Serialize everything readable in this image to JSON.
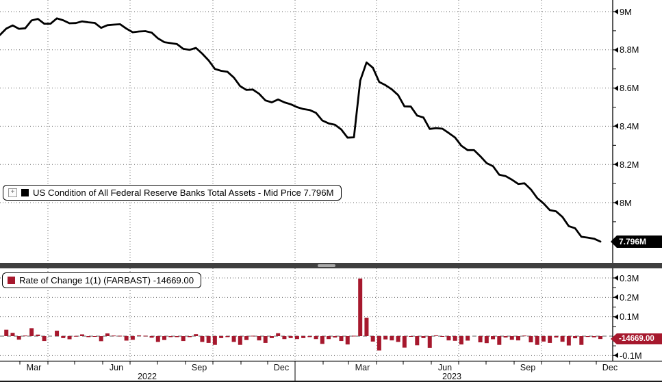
{
  "top_panel": {
    "legend": {
      "expand_icon": "plus-box-icon",
      "series_swatch_color": "#000000",
      "label": "US Condition of All Federal Reserve Banks Total Assets - Mid Price 7.796M"
    },
    "last_price_badge": "7.796M",
    "badge_bg": "#000000",
    "y_tick_labels": [
      "9M",
      "8.8M",
      "8.6M",
      "8.4M",
      "8.2M",
      "8M"
    ],
    "y_tick_values": [
      9.0,
      8.8,
      8.6,
      8.4,
      8.2,
      8.0
    ],
    "y_minor_tick_values": [
      8.9,
      8.7,
      8.5,
      8.3,
      8.1,
      7.9
    ]
  },
  "bottom_panel": {
    "legend": {
      "series_swatch_color": "#a6182d",
      "label": "Rate of Change 1(1) (FARBAST) -14669.00"
    },
    "last_value_badge": "-14669.00",
    "badge_bg": "#a6182d",
    "y_tick_labels": [
      "0.3M",
      "0.2M",
      "0.1M",
      "-0.1M"
    ],
    "y_tick_values": [
      300000,
      200000,
      100000,
      -100000
    ],
    "y_minor_tick_values": [
      250000,
      150000,
      50000,
      -50000
    ]
  },
  "x_axis": {
    "month_labels": [
      "Mar",
      "Jun",
      "Sep",
      "Dec",
      "Mar",
      "Jun",
      "Sep",
      "Dec"
    ],
    "year_labels": [
      "2022",
      "2023"
    ]
  },
  "colors": {
    "line": "#000000",
    "bar": "#a6182d",
    "grid": "#666666",
    "zero_line": "#7f7f7f",
    "axis": "#000000",
    "separator": "#3f3f3f",
    "background": "#ffffff"
  },
  "chart_data": [
    {
      "panel": "top",
      "type": "line",
      "name": "US Condition of All Federal Reserve Banks Total Assets - Mid Price",
      "frequency": "weekly",
      "range": "Feb 2022 - Dec 2023",
      "unit": "M (millions USD)",
      "last": 7.796,
      "ylim": [
        7.74,
        9.06
      ],
      "yticks": [
        9.0,
        8.8,
        8.6,
        8.4,
        8.2,
        8.0
      ],
      "grid": "dotted",
      "values": [
        8.878,
        8.911,
        8.928,
        8.91,
        8.913,
        8.954,
        8.962,
        8.937,
        8.937,
        8.965,
        8.955,
        8.939,
        8.94,
        8.949,
        8.944,
        8.941,
        8.915,
        8.929,
        8.932,
        8.934,
        8.911,
        8.892,
        8.896,
        8.898,
        8.89,
        8.86,
        8.84,
        8.835,
        8.83,
        8.805,
        8.8,
        8.81,
        8.78,
        8.745,
        8.7,
        8.69,
        8.685,
        8.655,
        8.61,
        8.59,
        8.592,
        8.57,
        8.535,
        8.525,
        8.54,
        8.525,
        8.515,
        8.5,
        8.49,
        8.485,
        8.47,
        8.43,
        8.415,
        8.408,
        8.383,
        8.34,
        8.342,
        8.639,
        8.734,
        8.706,
        8.632,
        8.615,
        8.593,
        8.563,
        8.504,
        8.503,
        8.456,
        8.446,
        8.386,
        8.39,
        8.387,
        8.365,
        8.341,
        8.298,
        8.275,
        8.275,
        8.243,
        8.207,
        8.191,
        8.146,
        8.139,
        8.12,
        8.098,
        8.101,
        8.069,
        8.024,
        7.996,
        7.961,
        7.954,
        7.925,
        7.877,
        7.866,
        7.821,
        7.817,
        7.811,
        7.796
      ]
    },
    {
      "panel": "bottom",
      "type": "bar",
      "name": "Rate of Change 1(1) (FARBAST)",
      "frequency": "weekly",
      "unit": "millions USD",
      "last": -14669.0,
      "ylim": [
        -130000,
        340000
      ],
      "yticks": [
        300000,
        200000,
        100000,
        0,
        -100000
      ],
      "values": [
        0,
        33000,
        17000,
        -18000,
        3000,
        41000,
        8000,
        -25000,
        0,
        28000,
        -10000,
        -16000,
        1000,
        9000,
        -5000,
        -3000,
        -26000,
        14000,
        3000,
        2000,
        -23000,
        -19000,
        4000,
        2000,
        -8000,
        -30000,
        -20000,
        -5000,
        -5000,
        -25000,
        -5000,
        10000,
        -30000,
        -35000,
        -45000,
        -10000,
        -5000,
        -30000,
        -45000,
        -20000,
        2000,
        -22000,
        -35000,
        -10000,
        15000,
        -15000,
        -10000,
        -15000,
        -10000,
        -5000,
        -15000,
        -40000,
        -15000,
        -7000,
        -25000,
        -43000,
        2000,
        297000,
        95000,
        -28000,
        -74000,
        -17000,
        -22000,
        -30000,
        -59000,
        -1000,
        -47000,
        -10000,
        -60000,
        4000,
        -3000,
        -22000,
        -24000,
        -43000,
        -23000,
        0,
        -32000,
        -36000,
        -16000,
        -45000,
        -7000,
        -19000,
        -22000,
        3000,
        -32000,
        -45000,
        -28000,
        -35000,
        -7000,
        -29000,
        -48000,
        -11000,
        -45000,
        -4000,
        -6000,
        -14669
      ]
    }
  ]
}
